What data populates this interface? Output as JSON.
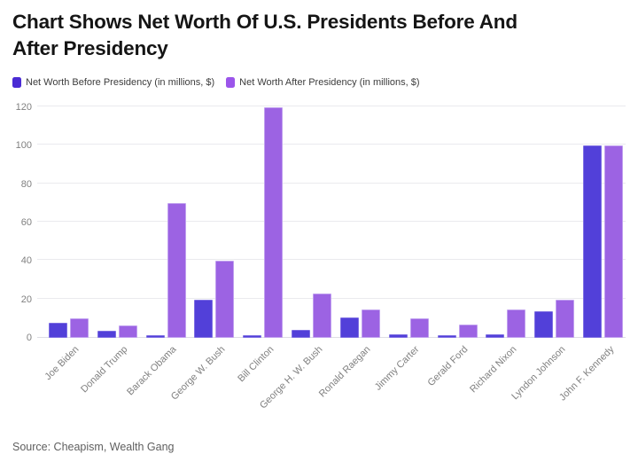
{
  "title": "Chart Shows Net Worth Of U.S. Presidents Before And\nAfter Presidency",
  "source": "Source: Cheapism, Wealth Gang",
  "legend": [
    {
      "label": "Net Worth Before Presidency (in millions, $)",
      "color": "#4a2bd4"
    },
    {
      "label": "Net Worth After Presidency (in millions, $)",
      "color": "#9b55ea"
    }
  ],
  "chart_data": {
    "type": "bar",
    "title": "Chart Shows Net Worth Of U.S. Presidents Before And After Presidency",
    "xlabel": "",
    "ylabel": "",
    "ylim": [
      0,
      120
    ],
    "yticks": [
      0,
      20,
      40,
      60,
      80,
      100,
      120
    ],
    "grid": true,
    "legend_position": "top",
    "categories": [
      "Joe Biden",
      "Donald Trump",
      "Barack Obama",
      "George W. Bush",
      "Bill Clinton",
      "George H. W. Bush",
      "Ronald Raegan",
      "Jimmy Carter",
      "Gerald Ford",
      "Richard Nixon",
      "Lyndon Johnson",
      "John F. Kennedy"
    ],
    "series": [
      {
        "name": "Net Worth Before Presidency (in millions, $)",
        "color": "#5240d9",
        "border_color": "#7e6fe3",
        "values": [
          8,
          3.7,
          1.3,
          20,
          1.3,
          4,
          10.5,
          2,
          1.3,
          2,
          14,
          100
        ]
      },
      {
        "name": "Net Worth After Presidency (in millions, $)",
        "color": "#9c63e3",
        "border_color": "#c0a0ef",
        "values": [
          10,
          6.5,
          70,
          40,
          120,
          23,
          15,
          10,
          7,
          15,
          20,
          100
        ]
      }
    ]
  }
}
